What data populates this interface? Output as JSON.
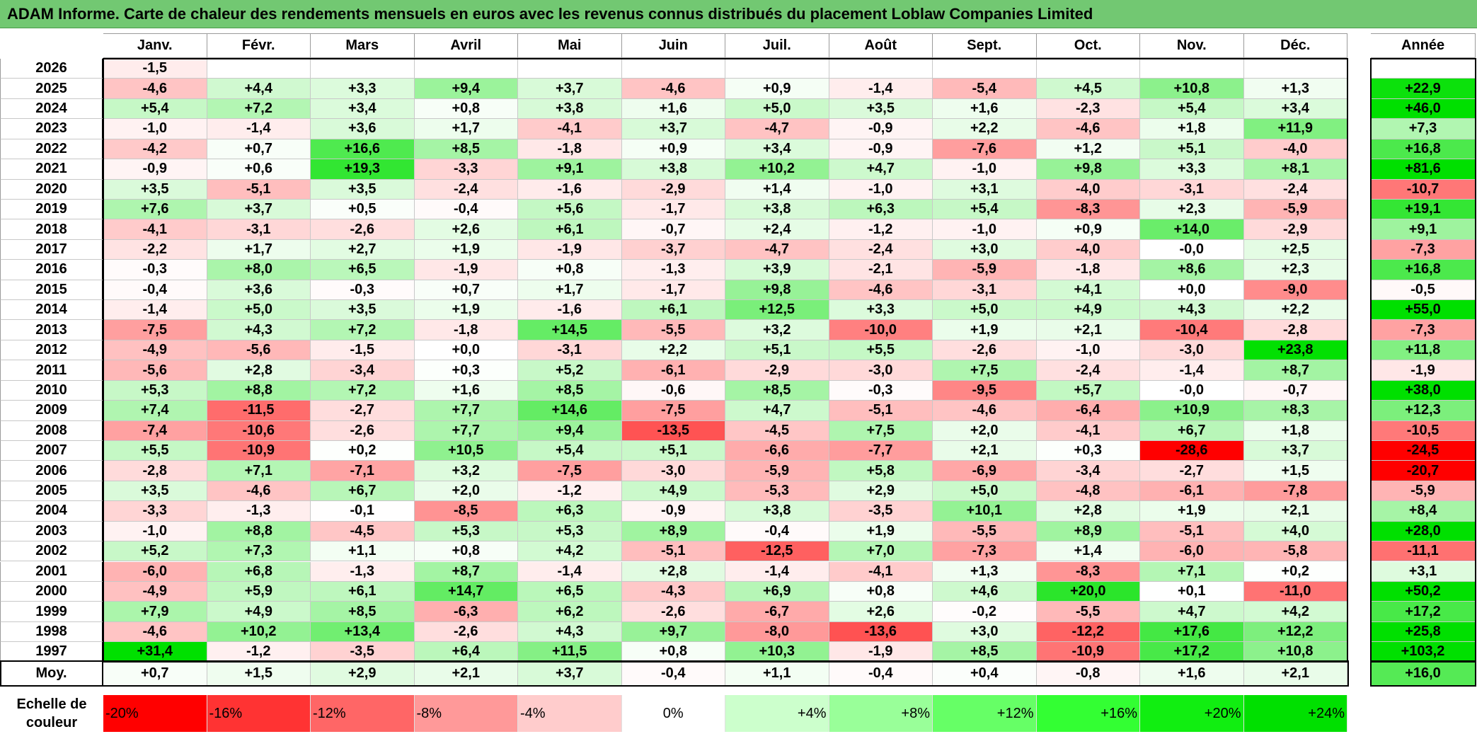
{
  "title": "ADAM Informe. Carte de chaleur des rendements mensuels en euros avec les revenus connus distribués du placement Loblaw Companies Limited",
  "chart_data": {
    "type": "heatmap",
    "columns": [
      "Janv.",
      "Févr.",
      "Mars",
      "Avril",
      "Mai",
      "Juin",
      "Juil.",
      "Août",
      "Sept.",
      "Oct.",
      "Nov.",
      "Déc."
    ],
    "year_header": "Année",
    "rows": [
      {
        "year": "2026",
        "months": [
          "-1,5",
          "",
          "",
          "",
          "",
          "",
          "",
          "",
          "",
          "",
          "",
          ""
        ],
        "annual": ""
      },
      {
        "year": "2025",
        "months": [
          "-4,6",
          "+4,4",
          "+3,3",
          "+9,4",
          "+3,7",
          "-4,6",
          "+0,9",
          "-1,4",
          "-5,4",
          "+4,5",
          "+10,8",
          "+1,3"
        ],
        "annual": "+22,9"
      },
      {
        "year": "2024",
        "months": [
          "+5,4",
          "+7,2",
          "+3,4",
          "+0,8",
          "+3,8",
          "+1,6",
          "+5,0",
          "+3,5",
          "+1,6",
          "-2,3",
          "+5,4",
          "+3,4"
        ],
        "annual": "+46,0"
      },
      {
        "year": "2023",
        "months": [
          "-1,0",
          "-1,4",
          "+3,6",
          "+1,7",
          "-4,1",
          "+3,7",
          "-4,7",
          "-0,9",
          "+2,2",
          "-4,6",
          "+1,8",
          "+11,9"
        ],
        "annual": "+7,3"
      },
      {
        "year": "2022",
        "months": [
          "-4,2",
          "+0,7",
          "+16,6",
          "+8,5",
          "-1,8",
          "+0,9",
          "+3,4",
          "-0,9",
          "-7,6",
          "+1,2",
          "+5,1",
          "-4,0"
        ],
        "annual": "+16,8"
      },
      {
        "year": "2021",
        "months": [
          "-0,9",
          "+0,6",
          "+19,3",
          "-3,3",
          "+9,1",
          "+3,8",
          "+10,2",
          "+4,7",
          "-1,0",
          "+9,8",
          "+3,3",
          "+8,1"
        ],
        "annual": "+81,6"
      },
      {
        "year": "2020",
        "months": [
          "+3,5",
          "-5,1",
          "+3,5",
          "-2,4",
          "-1,6",
          "-2,9",
          "+1,4",
          "-1,0",
          "+3,1",
          "-4,0",
          "-3,1",
          "-2,4"
        ],
        "annual": "-10,7"
      },
      {
        "year": "2019",
        "months": [
          "+7,6",
          "+3,7",
          "+0,5",
          "-0,4",
          "+5,6",
          "-1,7",
          "+3,8",
          "+6,3",
          "+5,4",
          "-8,3",
          "+2,3",
          "-5,9"
        ],
        "annual": "+19,1"
      },
      {
        "year": "2018",
        "months": [
          "-4,1",
          "-3,1",
          "-2,6",
          "+2,6",
          "+6,1",
          "-0,7",
          "+2,4",
          "-1,2",
          "-1,0",
          "+0,9",
          "+14,0",
          "-2,9"
        ],
        "annual": "+9,1"
      },
      {
        "year": "2017",
        "months": [
          "-2,2",
          "+1,7",
          "+2,7",
          "+1,9",
          "-1,9",
          "-3,7",
          "-4,7",
          "-2,4",
          "+3,0",
          "-4,0",
          "-0,0",
          "+2,5"
        ],
        "annual": "-7,3"
      },
      {
        "year": "2016",
        "months": [
          "-0,3",
          "+8,0",
          "+6,5",
          "-1,9",
          "+0,8",
          "-1,3",
          "+3,9",
          "-2,1",
          "-5,9",
          "-1,8",
          "+8,6",
          "+2,3"
        ],
        "annual": "+16,8"
      },
      {
        "year": "2015",
        "months": [
          "-0,4",
          "+3,6",
          "-0,3",
          "+0,7",
          "+1,7",
          "-1,7",
          "+9,8",
          "-4,6",
          "-3,1",
          "+4,1",
          "+0,0",
          "-9,0"
        ],
        "annual": "-0,5"
      },
      {
        "year": "2014",
        "months": [
          "-1,4",
          "+5,0",
          "+3,5",
          "+1,9",
          "-1,6",
          "+6,1",
          "+12,5",
          "+3,3",
          "+5,0",
          "+4,9",
          "+4,3",
          "+2,2"
        ],
        "annual": "+55,0"
      },
      {
        "year": "2013",
        "months": [
          "-7,5",
          "+4,3",
          "+7,2",
          "-1,8",
          "+14,5",
          "-5,5",
          "+3,2",
          "-10,0",
          "+1,9",
          "+2,1",
          "-10,4",
          "-2,8"
        ],
        "annual": "-7,3"
      },
      {
        "year": "2012",
        "months": [
          "-4,9",
          "-5,6",
          "-1,5",
          "+0,0",
          "-3,1",
          "+2,2",
          "+5,1",
          "+5,5",
          "-2,6",
          "-1,0",
          "-3,0",
          "+23,8"
        ],
        "annual": "+11,8"
      },
      {
        "year": "2011",
        "months": [
          "-5,6",
          "+2,8",
          "-3,4",
          "+0,3",
          "+5,2",
          "-6,1",
          "-2,9",
          "-3,0",
          "+7,5",
          "-2,4",
          "-1,4",
          "+8,7"
        ],
        "annual": "-1,9"
      },
      {
        "year": "2010",
        "months": [
          "+5,3",
          "+8,8",
          "+7,2",
          "+1,6",
          "+8,5",
          "-0,6",
          "+8,5",
          "-0,3",
          "-9,5",
          "+5,7",
          "-0,0",
          "-0,7"
        ],
        "annual": "+38,0"
      },
      {
        "year": "2009",
        "months": [
          "+7,4",
          "-11,5",
          "-2,7",
          "+7,7",
          "+14,6",
          "-7,5",
          "+4,7",
          "-5,1",
          "-4,6",
          "-6,4",
          "+10,9",
          "+8,3"
        ],
        "annual": "+12,3"
      },
      {
        "year": "2008",
        "months": [
          "-7,4",
          "-10,6",
          "-2,6",
          "+7,7",
          "+9,4",
          "-13,5",
          "-4,5",
          "+7,5",
          "+2,0",
          "-4,1",
          "+6,7",
          "+1,8"
        ],
        "annual": "-10,5"
      },
      {
        "year": "2007",
        "months": [
          "+5,5",
          "-10,9",
          "+0,2",
          "+10,5",
          "+5,4",
          "+5,1",
          "-6,6",
          "-7,7",
          "+2,1",
          "+0,3",
          "-28,6",
          "+3,7"
        ],
        "annual": "-24,5"
      },
      {
        "year": "2006",
        "months": [
          "-2,8",
          "+7,1",
          "-7,1",
          "+3,2",
          "-7,5",
          "-3,0",
          "-5,9",
          "+5,8",
          "-6,9",
          "-3,4",
          "-2,7",
          "+1,5"
        ],
        "annual": "-20,7"
      },
      {
        "year": "2005",
        "months": [
          "+3,5",
          "-4,6",
          "+6,7",
          "+2,0",
          "-1,2",
          "+4,9",
          "-5,3",
          "+2,9",
          "+5,0",
          "-4,8",
          "-6,1",
          "-7,8"
        ],
        "annual": "-5,9"
      },
      {
        "year": "2004",
        "months": [
          "-3,3",
          "-1,3",
          "-0,1",
          "-8,5",
          "+6,3",
          "-0,9",
          "+3,8",
          "-3,5",
          "+10,1",
          "+2,8",
          "+1,9",
          "+2,1"
        ],
        "annual": "+8,4"
      },
      {
        "year": "2003",
        "months": [
          "-1,0",
          "+8,8",
          "-4,5",
          "+5,3",
          "+5,3",
          "+8,9",
          "-0,4",
          "+1,9",
          "-5,5",
          "+8,9",
          "-5,1",
          "+4,0"
        ],
        "annual": "+28,0"
      },
      {
        "year": "2002",
        "months": [
          "+5,2",
          "+7,3",
          "+1,1",
          "+0,8",
          "+4,2",
          "-5,1",
          "-12,5",
          "+7,0",
          "-7,3",
          "+1,4",
          "-6,0",
          "-5,8"
        ],
        "annual": "-11,1"
      },
      {
        "year": "2001",
        "months": [
          "-6,0",
          "+6,8",
          "-1,3",
          "+8,7",
          "-1,4",
          "+2,8",
          "-1,4",
          "-4,1",
          "+1,3",
          "-8,3",
          "+7,1",
          "+0,2"
        ],
        "annual": "+3,1"
      },
      {
        "year": "2000",
        "months": [
          "-4,9",
          "+5,9",
          "+6,1",
          "+14,7",
          "+6,5",
          "-4,3",
          "+6,9",
          "+0,8",
          "+4,6",
          "+20,0",
          "+0,1",
          "-11,0"
        ],
        "annual": "+50,2"
      },
      {
        "year": "1999",
        "months": [
          "+7,9",
          "+4,9",
          "+8,5",
          "-6,3",
          "+6,2",
          "-2,6",
          "-6,7",
          "+2,6",
          "-0,2",
          "-5,5",
          "+4,7",
          "+4,2"
        ],
        "annual": "+17,2"
      },
      {
        "year": "1998",
        "months": [
          "-4,6",
          "+10,2",
          "+13,4",
          "-2,6",
          "+4,3",
          "+9,7",
          "-8,0",
          "-13,6",
          "+3,0",
          "-12,2",
          "+17,6",
          "+12,2"
        ],
        "annual": "+25,8"
      },
      {
        "year": "1997",
        "months": [
          "+31,4",
          "-1,2",
          "-3,5",
          "+6,4",
          "+11,5",
          "+0,8",
          "+10,3",
          "-1,9",
          "+8,5",
          "-10,9",
          "+17,2",
          "+10,8"
        ],
        "annual": "+103,2"
      }
    ],
    "average": {
      "label": "Moy.",
      "months": [
        "+0,7",
        "+1,5",
        "+2,9",
        "+2,1",
        "+3,7",
        "-0,4",
        "+1,1",
        "-0,4",
        "+0,4",
        "-0,8",
        "+1,6",
        "+2,1"
      ],
      "annual": "+16,0"
    },
    "color_scale": {
      "label": "Echelle de couleur",
      "stops": [
        {
          "label": "-20%",
          "value": -20,
          "color": "#ff0000"
        },
        {
          "label": "-16%",
          "value": -16,
          "color": "#ff3333"
        },
        {
          "label": "-12%",
          "value": -12,
          "color": "#ff6666"
        },
        {
          "label": "-8%",
          "value": -8,
          "color": "#ff9999"
        },
        {
          "label": "-4%",
          "value": -4,
          "color": "#ffcccc"
        },
        {
          "label": "0%",
          "value": 0,
          "color": "#ffffff"
        },
        {
          "label": "+4%",
          "value": 4,
          "color": "#ccffcc"
        },
        {
          "label": "+8%",
          "value": 8,
          "color": "#99ff99"
        },
        {
          "label": "+12%",
          "value": 12,
          "color": "#66ff66"
        },
        {
          "label": "+16%",
          "value": 16,
          "color": "#33ff33"
        },
        {
          "label": "+20%",
          "value": 20,
          "color": "#11ee11"
        },
        {
          "label": "+24%",
          "value": 24,
          "color": "#00e000"
        }
      ]
    }
  }
}
